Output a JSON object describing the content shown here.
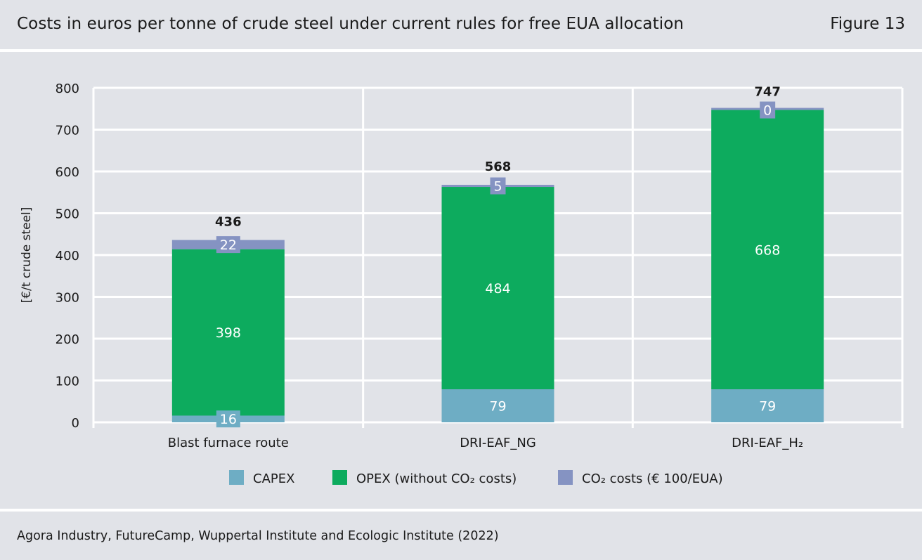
{
  "header": {
    "title": "Costs in euros per tonne of crude steel under current rules for free EUA allocation",
    "figure_label": "Figure 13"
  },
  "source": "Agora Industry, FutureCamp, Wuppertal Institute and Ecologic Institute (2022)",
  "colors": {
    "background": "#e1e3e8",
    "grid": "#ffffff",
    "capex": "#6eadc4",
    "opex": "#0dab5e",
    "co2": "#8593c2"
  },
  "chart_data": {
    "type": "bar",
    "stacked": true,
    "title": "Costs in euros per tonne of crude steel under current rules for free EUA allocation",
    "xlabel": "",
    "ylabel": "[€/t crude steel]",
    "ylim": [
      0,
      800
    ],
    "yticks": [
      0,
      100,
      200,
      300,
      400,
      500,
      600,
      700,
      800
    ],
    "grid": true,
    "legend_position": "bottom",
    "categories": [
      "Blast furnace route",
      "DRI-EAF_NG",
      "DRI-EAF_H₂"
    ],
    "series": [
      {
        "name": "CAPEX",
        "values": [
          16,
          79,
          79
        ],
        "color": "#6eadc4"
      },
      {
        "name": "OPEX (without CO₂ costs)",
        "values": [
          398,
          484,
          668
        ],
        "color": "#0dab5e"
      },
      {
        "name": "CO₂ costs (€ 100/EUA)",
        "values": [
          22,
          5,
          0
        ],
        "color": "#8593c2"
      }
    ],
    "totals": [
      436,
      568,
      747
    ]
  }
}
